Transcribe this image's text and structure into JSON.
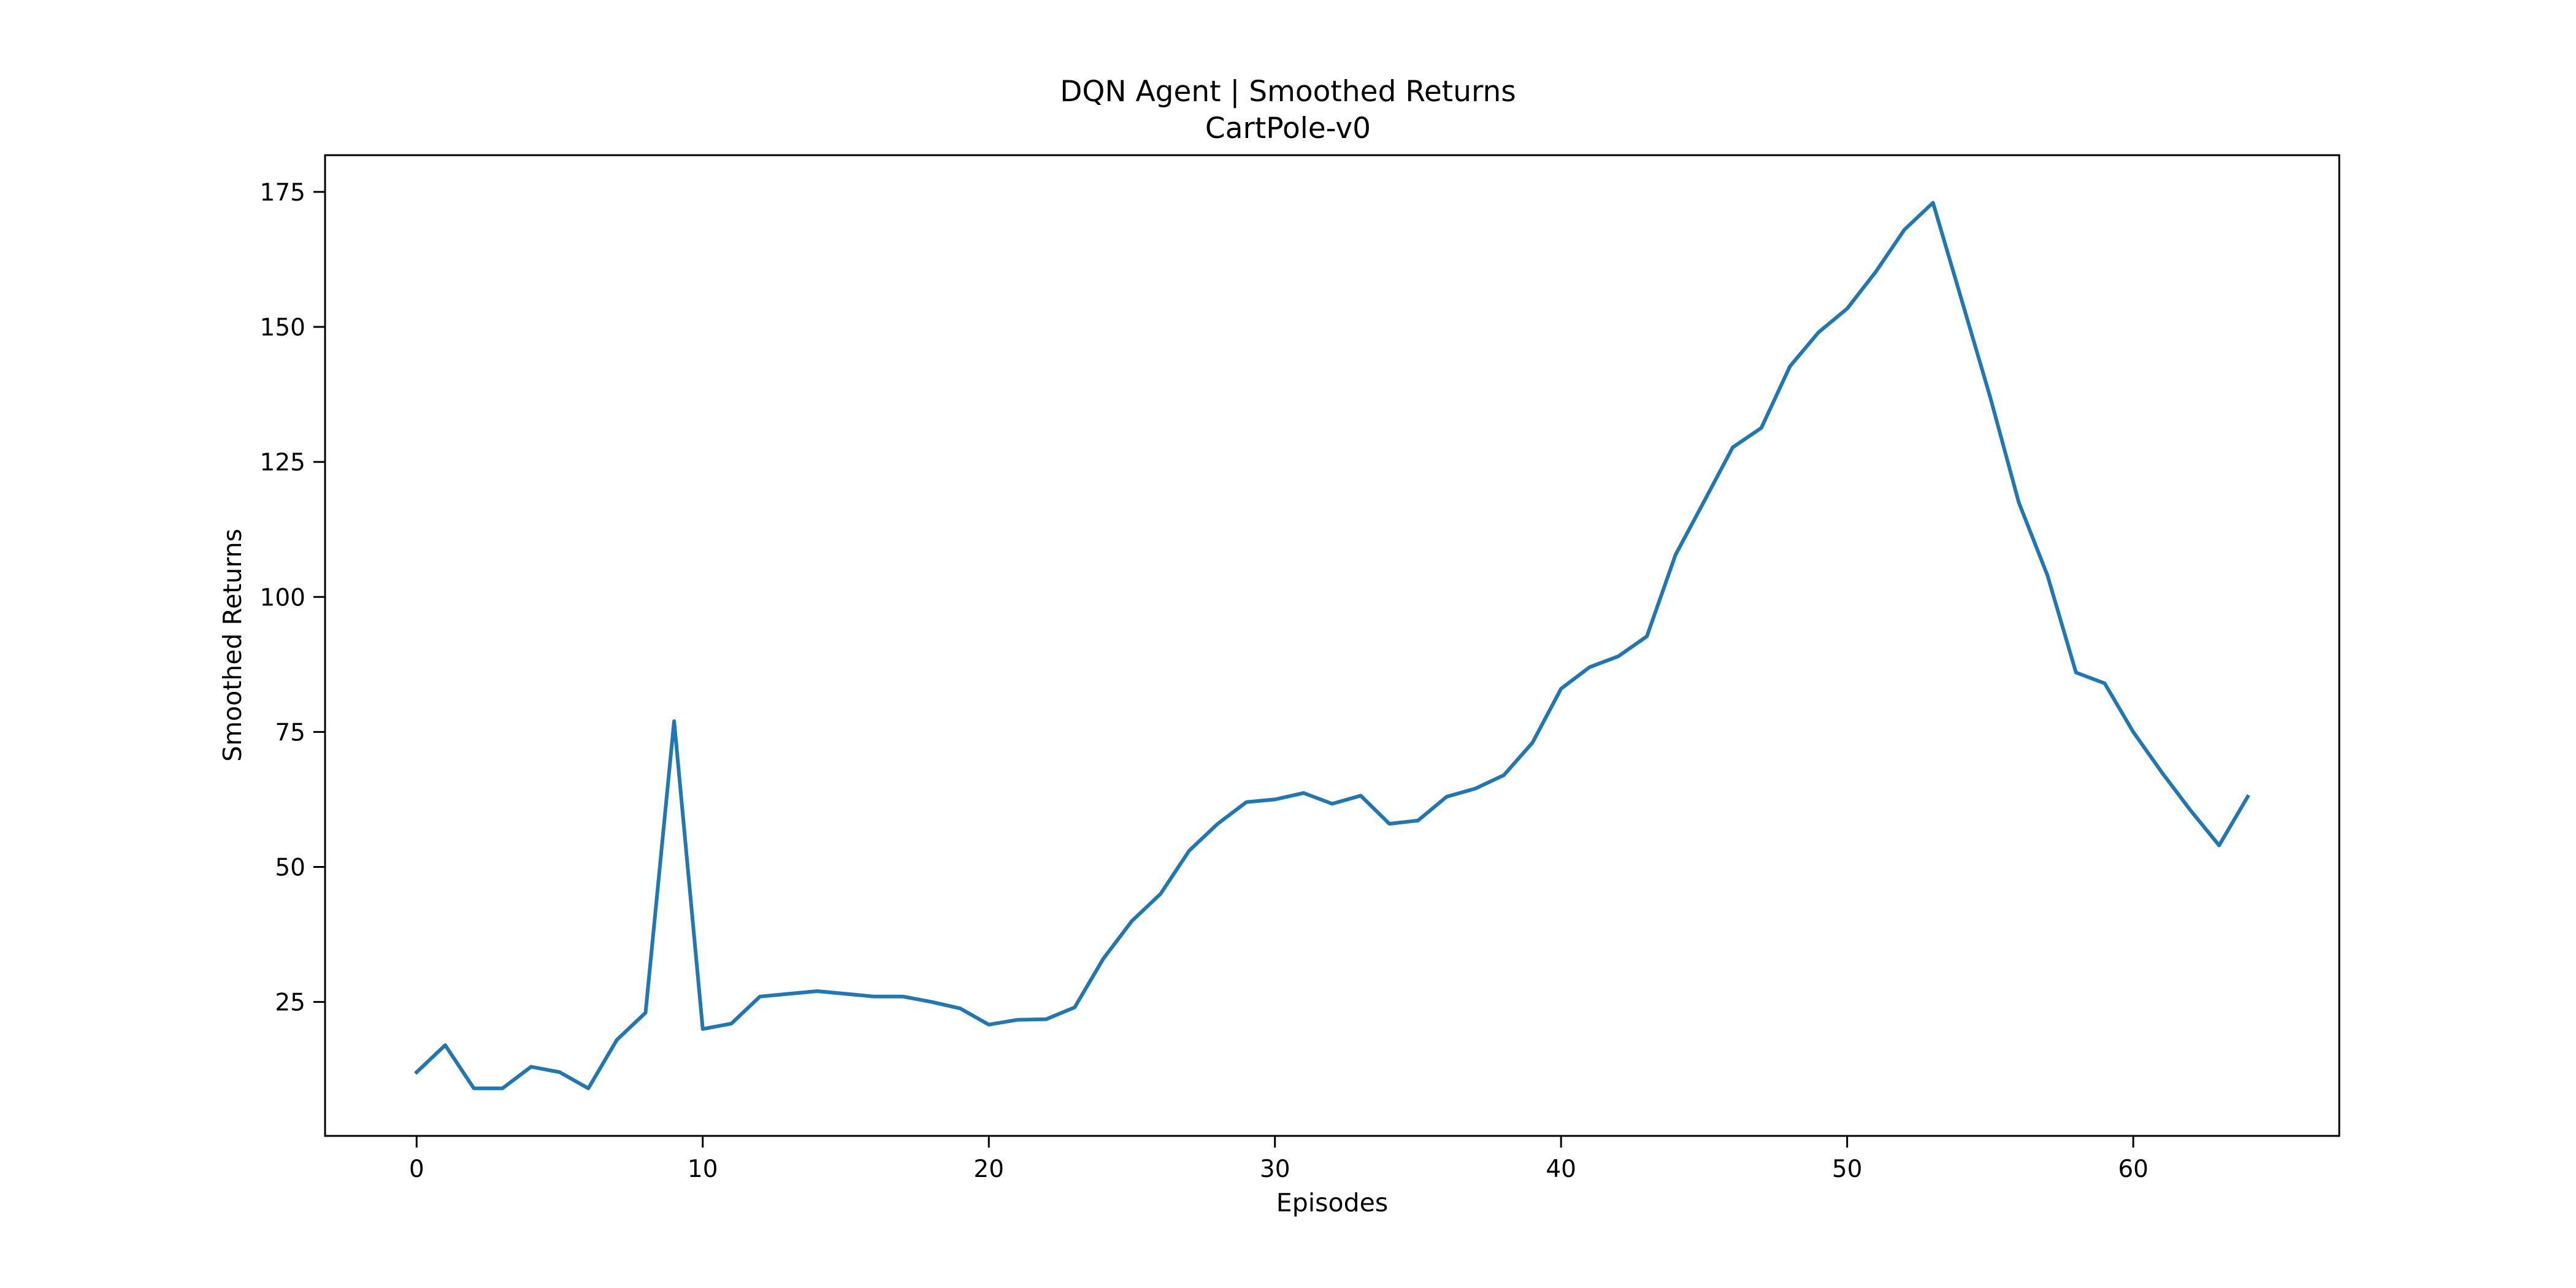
{
  "chart_data": {
    "type": "line",
    "title": "DQN Agent | Smoothed Returns",
    "subtitle": "CartPole-v0",
    "xlabel": "Episodes",
    "ylabel": "Smoothed Returns",
    "xlim": [
      -3.2,
      67.2
    ],
    "ylim": [
      0.2,
      181.8
    ],
    "xticks": [
      0,
      10,
      20,
      30,
      40,
      50,
      60
    ],
    "yticks": [
      25,
      50,
      75,
      100,
      125,
      150,
      175
    ],
    "grid": false,
    "legend": "none",
    "series": [
      {
        "color": "#1f77b4",
        "x": [
          0,
          1,
          2,
          3,
          4,
          5,
          6,
          7,
          8,
          9,
          10,
          11,
          12,
          13,
          14,
          15,
          16,
          17,
          18,
          19,
          20,
          21,
          22,
          23,
          24,
          25,
          26,
          27,
          28,
          29,
          30,
          31,
          32,
          33,
          34,
          35,
          36,
          37,
          38,
          39,
          40,
          41,
          42,
          43,
          44,
          45,
          46,
          47,
          48,
          49,
          50,
          51,
          52,
          53,
          54,
          55,
          56,
          57,
          58,
          59,
          60,
          61,
          62,
          63,
          64
        ],
        "y": [
          12,
          17,
          9,
          9,
          13,
          12,
          9,
          18,
          23,
          77,
          20,
          21,
          26,
          26.5,
          27,
          26.5,
          26,
          26,
          25,
          23.8,
          20.8,
          21.7,
          21.8,
          24,
          33,
          40,
          45,
          53,
          58,
          62,
          62.5,
          63.7,
          61.7,
          63.2,
          58,
          58.6,
          63,
          64.5,
          67,
          73,
          83,
          87,
          89,
          92.7,
          107.8,
          117.7,
          127.7,
          131.3,
          142.7,
          149,
          153.4,
          160.2,
          168,
          173,
          155,
          137,
          117.5,
          104,
          86,
          84,
          75,
          67.5,
          60.5,
          54,
          63
        ]
      }
    ]
  }
}
